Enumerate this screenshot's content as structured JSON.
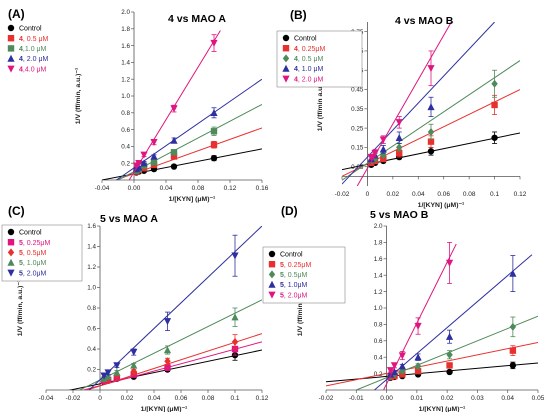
{
  "chart_data": [
    {
      "panel": "(A)",
      "title_num": "4",
      "title_rest": " vs MAO A",
      "type": "scatter",
      "xlabel": "1/[KYN] (μM)⁻¹",
      "ylabel": "1/V (ff/min, a.u.)⁻¹",
      "xlim": [
        -0.04,
        0.16
      ],
      "ylim": [
        0,
        2.0
      ],
      "xticks": [
        "-0.04",
        "0.00",
        "0.04",
        "0.08",
        "0.12",
        "0.16"
      ],
      "yticks": [
        "0.2",
        "0.4",
        "0.6",
        "0.8",
        "1.0",
        "1.2",
        "1.4",
        "1.6",
        "1.8",
        "2.0"
      ],
      "legend": [
        {
          "num": "",
          "rest": "Control",
          "color": "#000000"
        },
        {
          "num": "4",
          "rest": ", 0.5 μM",
          "color": "#e8312f"
        },
        {
          "num": "4",
          "rest": ",1.0 μM",
          "color": "#4f8a5a"
        },
        {
          "num": "4",
          "rest": ", 2.0 μM",
          "color": "#2e2fa0"
        },
        {
          "num": "4",
          "rest": ",4.0 μM",
          "color": "#e0157f"
        }
      ],
      "series": [
        {
          "marker": "circle",
          "color": "#000000",
          "x": [
            0.003,
            0.006,
            0.0125,
            0.025,
            0.05,
            0.1
          ],
          "y": [
            0.09,
            0.1,
            0.11,
            0.13,
            0.16,
            0.26
          ],
          "err": [
            0.01,
            0.01,
            0.01,
            0.01,
            0.02,
            0.03
          ],
          "line_x": [
            -0.04,
            0.16
          ],
          "line_y": [
            0.0,
            0.37
          ]
        },
        {
          "marker": "square",
          "color": "#e8312f",
          "x": [
            0.003,
            0.006,
            0.0125,
            0.025,
            0.05,
            0.1
          ],
          "y": [
            0.1,
            0.12,
            0.14,
            0.18,
            0.28,
            0.42
          ],
          "err": [
            0.01,
            0.01,
            0.01,
            0.02,
            0.02,
            0.04
          ],
          "line_x": [
            -0.04,
            0.16
          ],
          "line_y": [
            -0.06,
            0.62
          ]
        },
        {
          "marker": "square",
          "color": "#4f8a5a",
          "x": [
            0.003,
            0.006,
            0.0125,
            0.025,
            0.05,
            0.1
          ],
          "y": [
            0.11,
            0.13,
            0.17,
            0.21,
            0.33,
            0.58
          ],
          "err": [
            0.01,
            0.01,
            0.01,
            0.02,
            0.03,
            0.05
          ],
          "line_x": [
            -0.04,
            0.16
          ],
          "line_y": [
            -0.1,
            0.9
          ]
        },
        {
          "marker": "triangle",
          "color": "#2e2fa0",
          "x": [
            0.003,
            0.006,
            0.0125,
            0.025,
            0.05,
            0.1
          ],
          "y": [
            0.13,
            0.15,
            0.2,
            0.28,
            0.47,
            0.8
          ],
          "err": [
            0.01,
            0.01,
            0.02,
            0.02,
            0.03,
            0.06
          ],
          "line_x": [
            -0.04,
            0.16
          ],
          "line_y": [
            -0.12,
            1.2
          ]
        },
        {
          "marker": "tridown",
          "color": "#e0157f",
          "x": [
            0.003,
            0.006,
            0.0125,
            0.025,
            0.05,
            0.1
          ],
          "y": [
            0.17,
            0.2,
            0.3,
            0.45,
            0.85,
            1.63
          ],
          "err": [
            0.01,
            0.01,
            0.02,
            0.03,
            0.04,
            0.1
          ],
          "line_x": [
            -0.006,
            0.108
          ],
          "line_y": [
            0.0,
            1.78
          ]
        }
      ]
    },
    {
      "panel": "(B)",
      "title_num": "4",
      "title_rest": " vs MAO B",
      "type": "scatter",
      "xlabel": "1/[KYN] (μM)⁻¹",
      "ylabel": "1/V (ff/min a.u.)⁻¹",
      "xlim": [
        -0.02,
        0.12
      ],
      "ylim": [
        -0.05,
        0.8
      ],
      "xticks": [
        "-0.02",
        "0",
        "0.02",
        "0.04",
        "0.06",
        "0.08",
        "0.1",
        "0.12"
      ],
      "yticks": [
        "0.05",
        "0.15",
        "0.25",
        "0.35",
        "0.45",
        "0.55",
        "0.65",
        "0.75"
      ],
      "legend": [
        {
          "num": "",
          "rest": "Control",
          "color": "#000000"
        },
        {
          "num": "4",
          "rest": ", 0.25μM",
          "color": "#e8312f"
        },
        {
          "num": "4",
          "rest": ", 0.5 μM",
          "color": "#4f8a5a"
        },
        {
          "num": "4",
          "rest": ", 1.0 μM",
          "color": "#2e2fa0"
        },
        {
          "num": "4",
          "rest": ", 2.0 μM",
          "color": "#e0157f"
        }
      ],
      "series": [
        {
          "marker": "circle",
          "color": "#000000",
          "x": [
            0.003,
            0.006,
            0.0125,
            0.025,
            0.05,
            0.1
          ],
          "y": [
            0.06,
            0.07,
            0.08,
            0.1,
            0.13,
            0.2
          ],
          "err": [
            0.01,
            0.01,
            0.01,
            0.01,
            0.02,
            0.03
          ],
          "line_x": [
            -0.02,
            0.12
          ],
          "line_y": [
            0.035,
            0.225
          ]
        },
        {
          "marker": "square",
          "color": "#e8312f",
          "x": [
            0.003,
            0.006,
            0.0125,
            0.025,
            0.05,
            0.1
          ],
          "y": [
            0.07,
            0.08,
            0.09,
            0.12,
            0.18,
            0.37
          ],
          "err": [
            0.01,
            0.01,
            0.01,
            0.02,
            0.03,
            0.05
          ],
          "line_x": [
            -0.02,
            0.12
          ],
          "line_y": [
            0.0,
            0.45
          ]
        },
        {
          "marker": "diamond",
          "color": "#4f8a5a",
          "x": [
            0.003,
            0.006,
            0.0125,
            0.025,
            0.05,
            0.1
          ],
          "y": [
            0.08,
            0.09,
            0.11,
            0.15,
            0.23,
            0.48
          ],
          "err": [
            0.01,
            0.01,
            0.01,
            0.02,
            0.04,
            0.07
          ],
          "line_x": [
            -0.02,
            0.12
          ],
          "line_y": [
            -0.02,
            0.6
          ]
        },
        {
          "marker": "triangle",
          "color": "#2e2fa0",
          "x": [
            0.003,
            0.006,
            0.0125,
            0.025,
            0.05
          ],
          "y": [
            0.09,
            0.11,
            0.14,
            0.2,
            0.36
          ],
          "err": [
            0.01,
            0.01,
            0.02,
            0.03,
            0.05
          ],
          "line_x": [
            -0.02,
            0.1
          ],
          "line_y": [
            -0.04,
            0.8
          ]
        },
        {
          "marker": "tridown",
          "color": "#e0157f",
          "x": [
            0.003,
            0.006,
            0.0125,
            0.025,
            0.05
          ],
          "y": [
            0.1,
            0.12,
            0.19,
            0.28,
            0.56
          ],
          "err": [
            0.01,
            0.02,
            0.02,
            0.03,
            0.09
          ],
          "line_x": [
            -0.008,
            0.066
          ],
          "line_y": [
            -0.05,
            0.8
          ]
        }
      ]
    },
    {
      "panel": "(C)",
      "title_num": "5",
      "title_rest": " vs MAO A",
      "type": "scatter",
      "xlabel": "1/[KYN] (μM)⁻¹",
      "ylabel": "1/V (ff/min, a.u.)⁻¹",
      "xlim": [
        -0.04,
        0.12
      ],
      "ylim": [
        0,
        1.6
      ],
      "xticks": [
        "-0.04",
        "-0.02",
        "0",
        "0.02",
        "0.04",
        "0.06",
        "0.08",
        "0.1",
        "0.12"
      ],
      "yticks": [
        "0.2",
        "0.4",
        "0.6",
        "0.8",
        "1.0",
        "1.2",
        "1.4",
        "1.6"
      ],
      "legend": [
        {
          "num": "",
          "rest": "Control",
          "color": "#000000"
        },
        {
          "num": "5",
          "rest": ", 0.25μM",
          "color": "#e0157f"
        },
        {
          "num": "5",
          "rest": ", 0.5μM",
          "color": "#e8312f"
        },
        {
          "num": "5",
          "rest": ", 1.0μM",
          "color": "#4f8a5a"
        },
        {
          "num": "5",
          "rest": ", 2.0μM",
          "color": "#2e2fa0"
        }
      ],
      "series": [
        {
          "marker": "circle",
          "color": "#000000",
          "x": [
            0.003,
            0.006,
            0.0125,
            0.025,
            0.05,
            0.1
          ],
          "y": [
            0.08,
            0.09,
            0.11,
            0.13,
            0.2,
            0.34
          ],
          "err": [
            0.01,
            0.01,
            0.01,
            0.01,
            0.02,
            0.05
          ],
          "line_x": [
            -0.04,
            0.12
          ],
          "line_y": [
            -0.05,
            0.39
          ]
        },
        {
          "marker": "square",
          "color": "#e0157f",
          "x": [
            0.003,
            0.006,
            0.0125,
            0.025,
            0.05,
            0.1
          ],
          "y": [
            0.09,
            0.1,
            0.12,
            0.15,
            0.22,
            0.4
          ],
          "err": [
            0.01,
            0.01,
            0.01,
            0.02,
            0.03,
            0.06
          ],
          "line_x": [
            -0.04,
            0.12
          ],
          "line_y": [
            -0.1,
            0.47
          ]
        },
        {
          "marker": "diamond",
          "color": "#e8312f",
          "x": [
            0.003,
            0.006,
            0.0125,
            0.025,
            0.05,
            0.1
          ],
          "y": [
            0.1,
            0.11,
            0.14,
            0.18,
            0.28,
            0.47
          ],
          "err": [
            0.01,
            0.01,
            0.01,
            0.02,
            0.03,
            0.07
          ],
          "line_x": [
            -0.04,
            0.12
          ],
          "line_y": [
            -0.13,
            0.55
          ]
        },
        {
          "marker": "triangle",
          "color": "#4f8a5a",
          "x": [
            0.003,
            0.006,
            0.0125,
            0.025,
            0.05,
            0.1
          ],
          "y": [
            0.11,
            0.13,
            0.17,
            0.24,
            0.39,
            0.71
          ],
          "err": [
            0.01,
            0.01,
            0.02,
            0.02,
            0.04,
            0.09
          ],
          "line_x": [
            -0.015,
            0.12
          ],
          "line_y": [
            0.0,
            0.88
          ]
        },
        {
          "marker": "tridown",
          "color": "#2e2fa0",
          "x": [
            0.003,
            0.006,
            0.0125,
            0.025,
            0.05,
            0.1
          ],
          "y": [
            0.14,
            0.17,
            0.24,
            0.37,
            0.67,
            1.31
          ],
          "err": [
            0.01,
            0.02,
            0.02,
            0.03,
            0.09,
            0.2
          ],
          "line_x": [
            -0.008,
            0.12
          ],
          "line_y": [
            0.0,
            1.6
          ]
        }
      ]
    },
    {
      "panel": "(D)",
      "title_num": "5",
      "title_rest": " vs MAO B",
      "type": "scatter",
      "xlabel": "1/[KYN] (μM)⁻¹",
      "ylabel": "1/V (ff/min, a.u.)⁻¹",
      "xlim": [
        -0.02,
        0.05
      ],
      "ylim": [
        0,
        2.0
      ],
      "xticks": [
        "-0.02",
        "-0.01",
        "0.00",
        "0.01",
        "0.02",
        "0.03",
        "0.04",
        "0.05"
      ],
      "yticks": [
        "0.2",
        "0.4",
        "0.6",
        "0.8",
        "1.0",
        "1.2",
        "1.4",
        "1.6",
        "1.8",
        "2.0"
      ],
      "legend": [
        {
          "num": "",
          "rest": "Control",
          "color": "#000000"
        },
        {
          "num": "5",
          "rest": ", 0.25μM",
          "color": "#e8312f"
        },
        {
          "num": "5",
          "rest": ", 0.5μM",
          "color": "#4f8a5a"
        },
        {
          "num": "5",
          "rest": ", 1.0μM",
          "color": "#2e2fa0"
        },
        {
          "num": "5",
          "rest": ", 2.0μM",
          "color": "#e0157f"
        }
      ],
      "series": [
        {
          "marker": "circle",
          "color": "#000000",
          "x": [
            0.0013,
            0.0026,
            0.0052,
            0.0104,
            0.0208,
            0.0417
          ],
          "y": [
            0.15,
            0.16,
            0.17,
            0.19,
            0.22,
            0.3
          ],
          "err": [
            0.01,
            0.01,
            0.01,
            0.01,
            0.02,
            0.04
          ],
          "line_x": [
            -0.02,
            0.05
          ],
          "line_y": [
            0.1,
            0.33
          ]
        },
        {
          "marker": "square",
          "color": "#e8312f",
          "x": [
            0.0013,
            0.0026,
            0.0052,
            0.0104,
            0.0208,
            0.0417
          ],
          "y": [
            0.16,
            0.17,
            0.19,
            0.23,
            0.3,
            0.48
          ],
          "err": [
            0.01,
            0.01,
            0.01,
            0.02,
            0.03,
            0.06
          ],
          "line_x": [
            -0.02,
            0.05
          ],
          "line_y": [
            0.05,
            0.58
          ]
        },
        {
          "marker": "diamond",
          "color": "#4f8a5a",
          "x": [
            0.0013,
            0.0026,
            0.0052,
            0.0104,
            0.0208,
            0.0417
          ],
          "y": [
            0.17,
            0.19,
            0.23,
            0.29,
            0.43,
            0.77
          ],
          "err": [
            0.01,
            0.01,
            0.02,
            0.03,
            0.05,
            0.12
          ],
          "line_x": [
            -0.01,
            0.05
          ],
          "line_y": [
            0.0,
            0.9
          ]
        },
        {
          "marker": "triangle",
          "color": "#2e2fa0",
          "x": [
            0.0013,
            0.0026,
            0.0052,
            0.0104,
            0.0208,
            0.0417
          ],
          "y": [
            0.19,
            0.22,
            0.29,
            0.4,
            0.65,
            1.42
          ],
          "err": [
            0.01,
            0.02,
            0.02,
            0.04,
            0.08,
            0.22
          ],
          "line_x": [
            -0.004,
            0.048
          ],
          "line_y": [
            0.0,
            1.65
          ]
        },
        {
          "marker": "tridown",
          "color": "#e0157f",
          "x": [
            0.0013,
            0.0026,
            0.0052,
            0.0104,
            0.0208
          ],
          "y": [
            0.24,
            0.3,
            0.42,
            0.78,
            1.55
          ],
          "err": [
            0.02,
            0.03,
            0.05,
            0.1,
            0.25
          ],
          "line_x": [
            -0.001,
            0.023
          ],
          "line_y": [
            0.0,
            1.78
          ]
        }
      ]
    }
  ]
}
